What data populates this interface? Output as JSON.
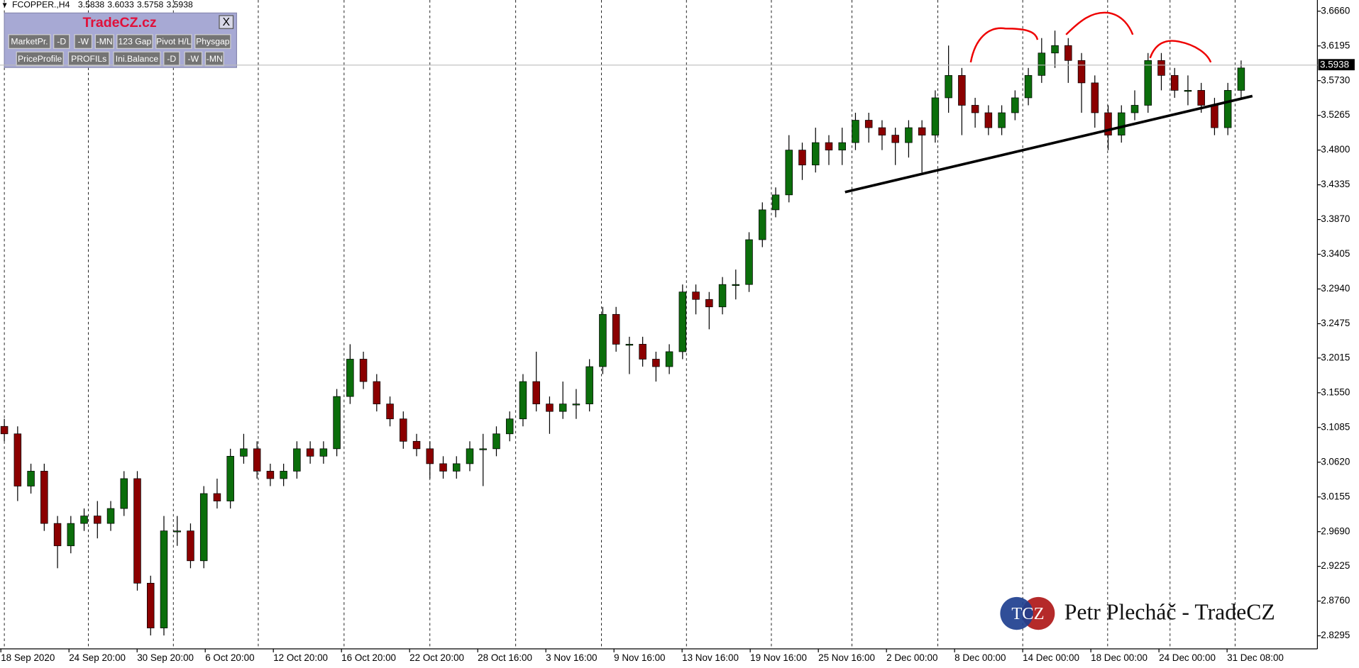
{
  "chart_data": {
    "type": "candlestick",
    "symbol": "FCOPPER.,H4",
    "header_ohlc": [
      3.5838,
      3.6033,
      3.5758,
      3.5938
    ],
    "open": [
      3.11,
      3.1,
      3.03,
      3.05,
      2.98,
      2.95,
      2.98,
      2.99,
      2.98,
      3.0,
      3.04,
      2.9,
      2.84,
      2.97,
      2.97,
      2.93,
      3.02,
      3.01,
      3.07,
      3.08,
      3.05,
      3.04,
      3.05,
      3.08,
      3.07,
      3.08,
      3.15,
      3.2,
      3.17,
      3.14,
      3.12,
      3.09,
      3.08,
      3.06,
      3.05,
      3.06,
      3.08,
      3.08,
      3.1,
      3.12,
      3.17,
      3.14,
      3.13,
      3.14,
      3.14,
      3.19,
      3.26,
      3.22,
      3.22,
      3.2,
      3.19,
      3.21,
      3.29,
      3.28,
      3.27,
      3.3,
      3.3,
      3.36,
      3.4,
      3.42,
      3.48,
      3.46,
      3.49,
      3.48,
      3.49,
      3.52,
      3.51,
      3.5,
      3.49,
      3.51,
      3.5,
      3.55,
      3.58,
      3.54,
      3.53,
      3.51,
      3.53,
      3.55,
      3.58,
      3.61,
      3.62,
      3.6,
      3.57,
      3.53,
      3.5,
      3.53,
      3.54,
      3.6,
      3.58,
      3.56,
      3.56,
      3.54,
      3.51,
      3.56
    ],
    "high": [
      3.12,
      3.11,
      3.06,
      3.06,
      2.99,
      2.99,
      3.0,
      3.01,
      3.01,
      3.05,
      3.05,
      2.91,
      2.99,
      2.99,
      2.98,
      3.03,
      3.04,
      3.08,
      3.1,
      3.09,
      3.06,
      3.06,
      3.09,
      3.09,
      3.09,
      3.16,
      3.22,
      3.21,
      3.18,
      3.15,
      3.13,
      3.1,
      3.09,
      3.07,
      3.07,
      3.09,
      3.1,
      3.11,
      3.13,
      3.18,
      3.21,
      3.15,
      3.17,
      3.16,
      3.2,
      3.27,
      3.27,
      3.23,
      3.23,
      3.21,
      3.22,
      3.3,
      3.3,
      3.29,
      3.31,
      3.32,
      3.37,
      3.41,
      3.43,
      3.5,
      3.49,
      3.51,
      3.5,
      3.51,
      3.53,
      3.53,
      3.52,
      3.51,
      3.52,
      3.52,
      3.56,
      3.62,
      3.59,
      3.55,
      3.54,
      3.54,
      3.56,
      3.59,
      3.63,
      3.64,
      3.63,
      3.61,
      3.58,
      3.54,
      3.54,
      3.56,
      3.61,
      3.61,
      3.59,
      3.58,
      3.57,
      3.55,
      3.57,
      3.6
    ],
    "low": [
      3.09,
      3.01,
      3.02,
      2.97,
      2.92,
      2.94,
      2.97,
      2.96,
      2.97,
      2.99,
      2.89,
      2.83,
      2.83,
      2.95,
      2.92,
      2.92,
      3.0,
      3.0,
      3.06,
      3.04,
      3.03,
      3.03,
      3.04,
      3.06,
      3.06,
      3.07,
      3.14,
      3.16,
      3.13,
      3.11,
      3.08,
      3.07,
      3.04,
      3.04,
      3.04,
      3.05,
      3.03,
      3.07,
      3.09,
      3.11,
      3.13,
      3.1,
      3.12,
      3.12,
      3.13,
      3.18,
      3.21,
      3.18,
      3.19,
      3.17,
      3.18,
      3.2,
      3.26,
      3.24,
      3.26,
      3.28,
      3.29,
      3.35,
      3.39,
      3.41,
      3.44,
      3.45,
      3.46,
      3.46,
      3.48,
      3.49,
      3.48,
      3.46,
      3.47,
      3.45,
      3.49,
      3.53,
      3.5,
      3.51,
      3.5,
      3.5,
      3.52,
      3.54,
      3.57,
      3.59,
      3.57,
      3.53,
      3.51,
      3.48,
      3.49,
      3.52,
      3.53,
      3.56,
      3.55,
      3.54,
      3.53,
      3.5,
      3.5,
      3.55
    ],
    "close": [
      3.1,
      3.03,
      3.05,
      2.98,
      2.95,
      2.98,
      2.99,
      2.98,
      3.0,
      3.04,
      2.9,
      2.84,
      2.97,
      2.97,
      2.93,
      3.02,
      3.01,
      3.07,
      3.08,
      3.05,
      3.04,
      3.05,
      3.08,
      3.07,
      3.08,
      3.15,
      3.2,
      3.17,
      3.14,
      3.12,
      3.09,
      3.08,
      3.06,
      3.05,
      3.06,
      3.08,
      3.08,
      3.1,
      3.12,
      3.17,
      3.14,
      3.13,
      3.14,
      3.14,
      3.19,
      3.26,
      3.22,
      3.22,
      3.2,
      3.19,
      3.21,
      3.29,
      3.28,
      3.27,
      3.3,
      3.3,
      3.36,
      3.4,
      3.42,
      3.48,
      3.46,
      3.49,
      3.48,
      3.49,
      3.52,
      3.51,
      3.5,
      3.49,
      3.51,
      3.5,
      3.55,
      3.58,
      3.54,
      3.53,
      3.51,
      3.53,
      3.55,
      3.58,
      3.61,
      3.62,
      3.6,
      3.57,
      3.53,
      3.5,
      3.53,
      3.54,
      3.6,
      3.58,
      3.56,
      3.56,
      3.54,
      3.51,
      3.56,
      3.59
    ],
    "up_color": "#0b6e0b",
    "down_color": "#8b0000",
    "ylim": [
      2.812,
      3.681
    ],
    "yticks": [
      {
        "value": 3.666,
        "label": "3.6660"
      },
      3.6195,
      {
        "value": 3.573,
        "label": "3.5730"
      },
      3.5265,
      {
        "value": 3.48,
        "label": "3.4800"
      },
      3.4335,
      {
        "value": 3.387,
        "label": "3.3870"
      },
      3.3405,
      {
        "value": 3.294,
        "label": "3.2940"
      },
      3.2475,
      3.2015,
      {
        "value": 3.155,
        "label": "3.1550"
      },
      3.1085,
      {
        "value": 3.062,
        "label": "3.0620"
      },
      3.0155,
      {
        "value": 2.969,
        "label": "2.9690"
      },
      2.9225,
      {
        "value": 2.876,
        "label": "2.8760"
      },
      2.8295
    ],
    "x_labels": [
      "18 Sep 2020",
      "24 Sep 20:00",
      "30 Sep 20:00",
      "6 Oct 20:00",
      "12 Oct 20:00",
      "16 Oct 20:00",
      "22 Oct 20:00",
      "28 Oct 16:00",
      "3 Nov 16:00",
      "9 Nov 16:00",
      "13 Nov 16:00",
      "19 Nov 16:00",
      "25 Nov 16:00",
      "2 Dec 00:00",
      "8 Dec 00:00",
      "14 Dec 00:00",
      "18 Dec 00:00",
      "24 Dec 00:00",
      "31 Dec 08:00"
    ],
    "last_price": 3.5938
  },
  "toolbar": {
    "title": "TradeCZ.cz",
    "close": "X",
    "row1": [
      "MarketPr.",
      "-D",
      "-W",
      "-MN",
      "123 Gap",
      "Pivot H/L",
      "Physgap"
    ],
    "row2": [
      "PriceProfile",
      "PROFILs",
      "Ini.Balance",
      "-D",
      "-W",
      "-MN"
    ]
  },
  "watermark": {
    "logo": "TCZ",
    "text": "Petr Plecháč - TradeCZ"
  }
}
